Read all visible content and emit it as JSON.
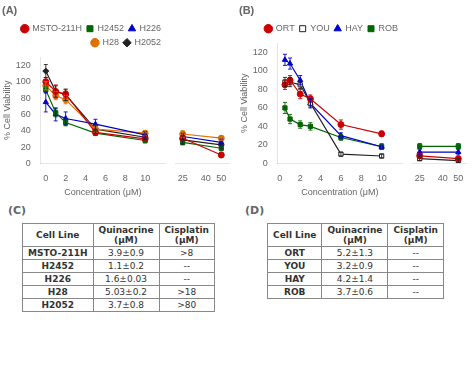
{
  "chart_data": [
    {
      "type": "line",
      "title": "(A)",
      "xlabel": "Concentration (μM)",
      "ylabel": "% Cell Viability",
      "x": [
        0,
        1,
        2,
        5,
        10
      ],
      "xlim": [
        -0.5,
        12
      ],
      "xticks": [
        0,
        2,
        4,
        6,
        8,
        10
      ],
      "ylim": [
        0,
        130
      ],
      "yticks": [
        0,
        20,
        40,
        60,
        80,
        100,
        120
      ],
      "grid": false,
      "legend": "upper right",
      "series": [
        {
          "name": "MSTO-211H",
          "color": "#cc0000",
          "marker": "circle",
          "values": [
            100,
            88,
            85,
            38,
            30
          ],
          "errors": [
            5,
            8,
            5,
            3,
            3
          ]
        },
        {
          "name": "H2452",
          "color": "#006600",
          "marker": "square",
          "values": [
            90,
            62,
            50,
            37,
            28
          ],
          "errors": [
            4,
            5,
            4,
            3,
            3
          ]
        },
        {
          "name": "H226",
          "color": "#0000cc",
          "marker": "triangle",
          "values": [
            75,
            60,
            55,
            48,
            35
          ],
          "errors": [
            12,
            8,
            8,
            6,
            4
          ]
        },
        {
          "name": "H28",
          "color": "#e07000",
          "marker": "circle",
          "values": [
            95,
            83,
            78,
            42,
            37
          ],
          "errors": [
            5,
            5,
            5,
            4,
            3
          ]
        },
        {
          "name": "H2052",
          "color": "#222222",
          "marker": "diamond",
          "values": [
            113,
            88,
            84,
            42,
            32
          ],
          "errors": [
            8,
            7,
            7,
            5,
            3
          ]
        }
      ]
    },
    {
      "type": "line",
      "x": [
        25,
        50
      ],
      "xlim": [
        20,
        55
      ],
      "xticks": [
        25,
        40,
        50
      ],
      "ylim": [
        0,
        130
      ],
      "yticks": [
        0,
        20,
        40,
        60,
        80,
        100,
        120
      ],
      "grid": false,
      "tick_labels": "x",
      "series": [
        {
          "color": "#cc0000",
          "marker": "circle",
          "values": [
            30,
            10
          ],
          "errors": [
            3,
            3
          ]
        },
        {
          "color": "#006600",
          "marker": "square",
          "values": [
            25,
            18
          ],
          "errors": [
            3,
            3
          ]
        },
        {
          "color": "#0000cc",
          "marker": "triangle",
          "values": [
            32,
            25
          ],
          "errors": [
            4,
            4
          ]
        },
        {
          "color": "#e07000",
          "marker": "circle",
          "values": [
            35,
            30
          ],
          "errors": [
            4,
            3
          ]
        },
        {
          "color": "#222222",
          "marker": "diamond",
          "values": [
            28,
            22
          ],
          "errors": [
            5,
            4
          ]
        }
      ]
    },
    {
      "type": "line",
      "title": "(B)",
      "xlabel": "Concentration (μM)",
      "ylabel": "% Cell Viability",
      "x": [
        0.5,
        1,
        2,
        3,
        6,
        10
      ],
      "xlim": [
        -0.2,
        12
      ],
      "xticks": [
        0,
        2,
        4,
        6,
        8,
        10
      ],
      "ylim": [
        0,
        130
      ],
      "yticks": [
        0,
        20,
        40,
        60,
        80,
        100,
        120
      ],
      "grid": false,
      "legend": "upper right",
      "series": [
        {
          "name": "ORT",
          "color": "#cc0000",
          "marker": "circle",
          "values": [
            85,
            90,
            75,
            70,
            42,
            32
          ],
          "errors": [
            5,
            5,
            5,
            4,
            5,
            3
          ]
        },
        {
          "name": "YOU",
          "color": "#222222",
          "marker": "open-square",
          "values": [
            88,
            88,
            85,
            65,
            10,
            8
          ],
          "errors": [
            5,
            5,
            4,
            4,
            2,
            2
          ]
        },
        {
          "name": "HAY",
          "color": "#0000cc",
          "marker": "triangle",
          "values": [
            112,
            108,
            90,
            65,
            30,
            18
          ],
          "errors": [
            6,
            6,
            5,
            5,
            3,
            3
          ]
        },
        {
          "name": "ROB",
          "color": "#006600",
          "marker": "square",
          "values": [
            60,
            48,
            42,
            40,
            28,
            18
          ],
          "errors": [
            6,
            5,
            4,
            4,
            3,
            3
          ]
        }
      ]
    },
    {
      "type": "line",
      "x": [
        25,
        50
      ],
      "xlim": [
        20,
        55
      ],
      "xticks": [
        25,
        40,
        50
      ],
      "ylim": [
        0,
        130
      ],
      "yticks": [
        0,
        20,
        40,
        60,
        80,
        100,
        120
      ],
      "grid": false,
      "tick_labels": "x",
      "series": [
        {
          "color": "#cc0000",
          "marker": "circle",
          "values": [
            8,
            5
          ],
          "errors": [
            2,
            2
          ]
        },
        {
          "color": "#222222",
          "marker": "open-square",
          "values": [
            5,
            3
          ],
          "errors": [
            2,
            2
          ]
        },
        {
          "color": "#0000cc",
          "marker": "triangle",
          "values": [
            12,
            12
          ],
          "errors": [
            3,
            3
          ]
        },
        {
          "color": "#006600",
          "marker": "square",
          "values": [
            18,
            18
          ],
          "errors": [
            3,
            3
          ]
        }
      ]
    },
    {
      "type": "table",
      "title": "(C)",
      "headers": [
        "Cell Line",
        "Quinacrine\n(μM)",
        "Cisplatin\n(μM)"
      ],
      "rows": [
        [
          "MSTO-211H",
          "3.9±0.9",
          ">8"
        ],
        [
          "H2452",
          "1.1±0.2",
          "--"
        ],
        [
          "H226",
          "1.6±0.03",
          "--"
        ],
        [
          "H28",
          "5.03±0.2",
          ">18"
        ],
        [
          "H2052",
          "3.7±0.8",
          ">80"
        ]
      ]
    },
    {
      "type": "table",
      "title": "(D)",
      "headers": [
        "Cell Line",
        "Quinacrine\n(μM)",
        "Cisplatin\n(μM)"
      ],
      "rows": [
        [
          "ORT",
          "5.2±1.3",
          "--"
        ],
        [
          "YOU",
          "3.2±0.9",
          "--"
        ],
        [
          "HAY",
          "4.2±1.4",
          "--"
        ],
        [
          "ROB",
          "3.7±0.6",
          "--"
        ]
      ]
    }
  ]
}
